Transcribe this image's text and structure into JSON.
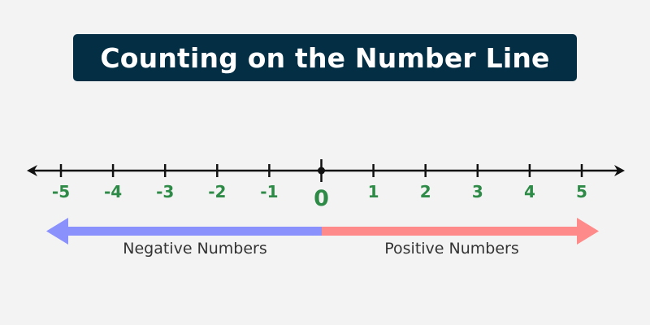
{
  "title": "Counting on the Number Line",
  "number_line": {
    "ticks": [
      "-5",
      "-4",
      "-3",
      "-2",
      "-1",
      "0",
      "1",
      "2",
      "3",
      "4",
      "5"
    ],
    "label_color": "#2e8b47",
    "line_color": "#111111"
  },
  "direction_arrows": {
    "negative": {
      "label": "Negative Numbers",
      "color": "#8a91fc"
    },
    "positive": {
      "label": "Positive Numbers",
      "color": "#ff8a8a"
    }
  }
}
